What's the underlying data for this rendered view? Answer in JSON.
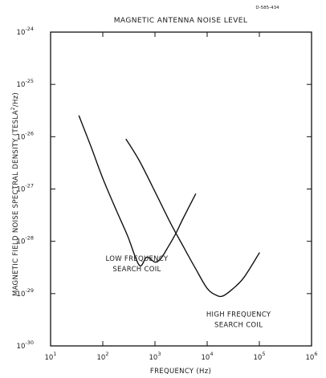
{
  "figure_id": "D-585-434",
  "chart_data": {
    "type": "line",
    "title": "MAGNETIC ANTENNA NOISE LEVEL",
    "xlabel": "FREQUENCY (Hz)",
    "ylabel": {
      "prefix": "MAGNETIC FIELD NOISE SPECTRAL DENSITY (TESLA",
      "sup": "2",
      "suffix": "/Hz)"
    },
    "x_scale": "log",
    "y_scale": "log",
    "xlim": [
      10,
      1000000
    ],
    "ylim": [
      1e-30,
      1e-24
    ],
    "grid": false,
    "x_ticks": [
      {
        "value": 10,
        "base": "10",
        "exp": "1"
      },
      {
        "value": 100,
        "base": "10",
        "exp": "2"
      },
      {
        "value": 1000,
        "base": "10",
        "exp": "3"
      },
      {
        "value": 10000,
        "base": "10",
        "exp": "4"
      },
      {
        "value": 100000,
        "base": "10",
        "exp": "5"
      },
      {
        "value": 1000000,
        "base": "10",
        "exp": "6"
      }
    ],
    "y_ticks": [
      {
        "value": 1e-24,
        "base": "10",
        "exp": "-24"
      },
      {
        "value": 1e-25,
        "base": "10",
        "exp": "-25"
      },
      {
        "value": 1e-26,
        "base": "10",
        "exp": "-26"
      },
      {
        "value": 1e-27,
        "base": "10",
        "exp": "-27"
      },
      {
        "value": 1e-28,
        "base": "10",
        "exp": "-28"
      },
      {
        "value": 1e-29,
        "base": "10",
        "exp": "-29"
      },
      {
        "value": 1e-30,
        "base": "10",
        "exp": "-30"
      }
    ],
    "series": [
      {
        "name": [
          "LOW FREQUENCY",
          "SEARCH COIL"
        ],
        "x": [
          35,
          60,
          100,
          180,
          300,
          500,
          700,
          1000,
          1300,
          1800,
          2500,
          3500,
          6000
        ],
        "y": [
          2.5e-26,
          6.3e-27,
          1.6e-27,
          4e-28,
          1.26e-28,
          3.5e-29,
          5e-29,
          4e-29,
          4.7e-29,
          7.9e-29,
          1.4e-28,
          2.8e-28,
          8e-28
        ]
      },
      {
        "name": [
          "HIGH FREQUENCY",
          "SEARCH COIL"
        ],
        "x": [
          280,
          500,
          1000,
          2000,
          3500,
          6000,
          10000,
          15000,
          20000,
          30000,
          50000,
          100000
        ],
        "y": [
          8.9e-27,
          3.5e-27,
          8.9e-28,
          2.2e-28,
          7.9e-29,
          3e-29,
          1.26e-29,
          9.3e-30,
          9e-30,
          1.2e-29,
          2e-29,
          6e-29
        ]
      }
    ]
  }
}
